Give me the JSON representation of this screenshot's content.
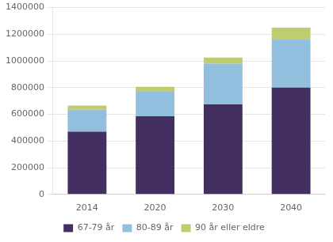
{
  "chart_data": {
    "type": "bar",
    "stacked": true,
    "categories": [
      "2014",
      "2020",
      "2030",
      "2040"
    ],
    "series": [
      {
        "name": "67-79 år",
        "color": "#433060",
        "values": [
          470000,
          585000,
          675000,
          800000
        ]
      },
      {
        "name": "80-89 år",
        "color": "#92BFDE",
        "values": [
          165000,
          185000,
          305000,
          365000
        ]
      },
      {
        "name": "90 år eller eldre",
        "color": "#BFCD6E",
        "values": [
          30000,
          37000,
          45000,
          85000
        ]
      }
    ],
    "ylim": [
      0,
      1400000
    ],
    "yticks": [
      0,
      200000,
      400000,
      600000,
      800000,
      1000000,
      1200000,
      1400000
    ],
    "grid": true,
    "legend": "bottom"
  }
}
